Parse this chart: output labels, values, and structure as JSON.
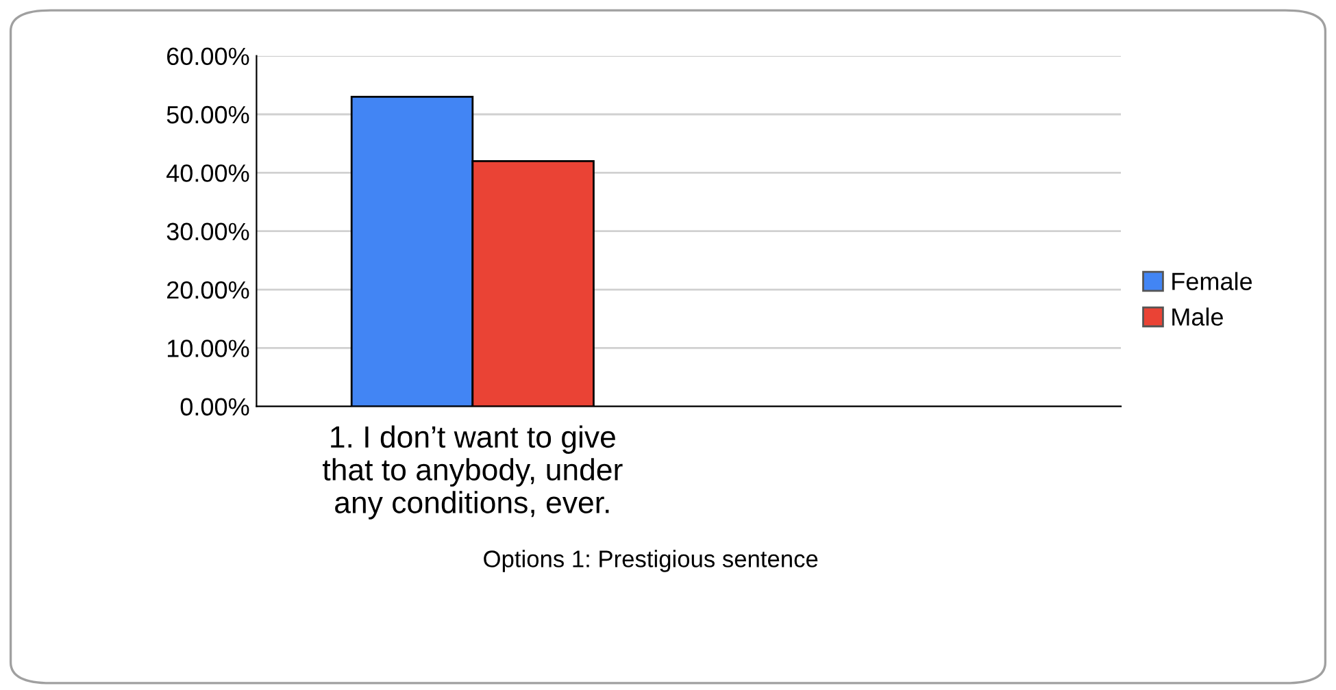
{
  "chart_data": {
    "type": "bar",
    "annotations": [
      "Options 1: Prestigious sentence"
    ],
    "categories": [
      "1. I don’t want to give\nthat to anybody, under\nany conditions, ever.",
      null
    ],
    "series": [
      {
        "name": "Female",
        "color": "#4285f4",
        "values": [
          53.0,
          null
        ]
      },
      {
        "name": "Male",
        "color": "#ea4335",
        "values": [
          42.0,
          null
        ]
      }
    ],
    "ylim": [
      0,
      60
    ],
    "yticks": [
      {
        "value": 0,
        "label": "0.00%"
      },
      {
        "value": 10,
        "label": "10.00%"
      },
      {
        "value": 20,
        "label": "20.00%"
      },
      {
        "value": 30,
        "label": "30.00%"
      },
      {
        "value": 40,
        "label": "40.00%"
      },
      {
        "value": 50,
        "label": "50.00%"
      },
      {
        "value": 60,
        "label": "60.00%"
      }
    ],
    "grid": "y",
    "legend": "right"
  }
}
